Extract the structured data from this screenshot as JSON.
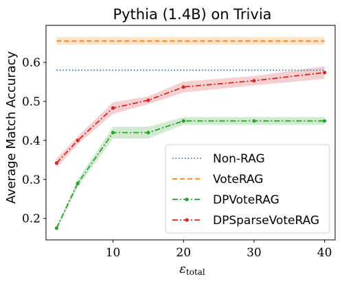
{
  "chart_data": {
    "type": "line",
    "title": "Pythia (1.4B) on Trivia",
    "xlabel": "ε",
    "xlabel_subscript": "total",
    "ylabel": "Average Match Accuracy",
    "xlim": [
      0.5,
      41.5
    ],
    "ylim": [
      0.145,
      0.695
    ],
    "x_ticks": [
      10,
      20,
      30,
      40
    ],
    "y_ticks": [
      0.2,
      0.3,
      0.4,
      0.5,
      0.6
    ],
    "grid": false,
    "legend_position": "lower-right",
    "series": [
      {
        "name": "Non-RAG",
        "style": "dotted",
        "color": "#1f77b4",
        "x": [
          2,
          40
        ],
        "y": [
          0.58,
          0.58
        ],
        "band_low": [
          0.58,
          0.58
        ],
        "band_high": [
          0.58,
          0.58
        ]
      },
      {
        "name": "VoteRAG",
        "style": "dashed",
        "color": "#ff7f0e",
        "x": [
          2,
          40
        ],
        "y": [
          0.655,
          0.655
        ],
        "band_low": [
          0.645,
          0.645
        ],
        "band_high": [
          0.665,
          0.665
        ]
      },
      {
        "name": "DPVoteRAG",
        "style": "dashdot",
        "color": "#2ca02c",
        "x": [
          2,
          5,
          10,
          15,
          20,
          30,
          40
        ],
        "y": [
          0.175,
          0.29,
          0.42,
          0.42,
          0.45,
          0.45,
          0.45
        ],
        "band_low": [
          0.17,
          0.28,
          0.405,
          0.405,
          0.44,
          0.44,
          0.44
        ],
        "band_high": [
          0.18,
          0.3,
          0.435,
          0.435,
          0.46,
          0.46,
          0.46
        ]
      },
      {
        "name": "DPSparseVoteRAG",
        "style": "dashdot",
        "color": "#d62728",
        "x": [
          2,
          5,
          10,
          15,
          20,
          30,
          40
        ],
        "y": [
          0.342,
          0.4,
          0.483,
          0.503,
          0.537,
          0.553,
          0.574
        ],
        "band_low": [
          0.33,
          0.39,
          0.468,
          0.493,
          0.523,
          0.541,
          0.558
        ],
        "band_high": [
          0.354,
          0.41,
          0.498,
          0.513,
          0.551,
          0.565,
          0.59
        ]
      }
    ]
  }
}
